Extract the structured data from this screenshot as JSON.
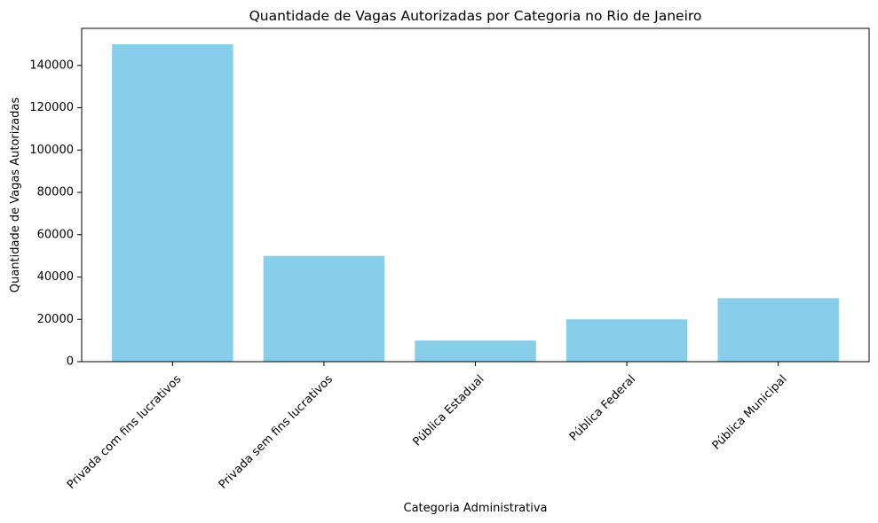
{
  "chart_data": {
    "type": "bar",
    "title": "Quantidade de Vagas Autorizadas por Categoria no Rio de Janeiro",
    "xlabel": "Categoria Administrativa",
    "ylabel": "Quantidade de Vagas Autorizadas",
    "categories": [
      "Privada com fins lucrativos",
      "Privada sem fins lucrativos",
      "Pública Estadual",
      "Pública Federal",
      "Pública Municipal"
    ],
    "values": [
      150000,
      50000,
      10000,
      20000,
      30000
    ],
    "ylim": [
      0,
      157500
    ],
    "yticks": [
      0,
      20000,
      40000,
      60000,
      80000,
      100000,
      120000,
      140000
    ],
    "ytick_labels": [
      "0",
      "20000",
      "40000",
      "60000",
      "80000",
      "100000",
      "120000",
      "140000"
    ],
    "bar_color": "#87CEEB",
    "x_tick_rotation_deg": 45,
    "grid": false,
    "legend": false
  }
}
